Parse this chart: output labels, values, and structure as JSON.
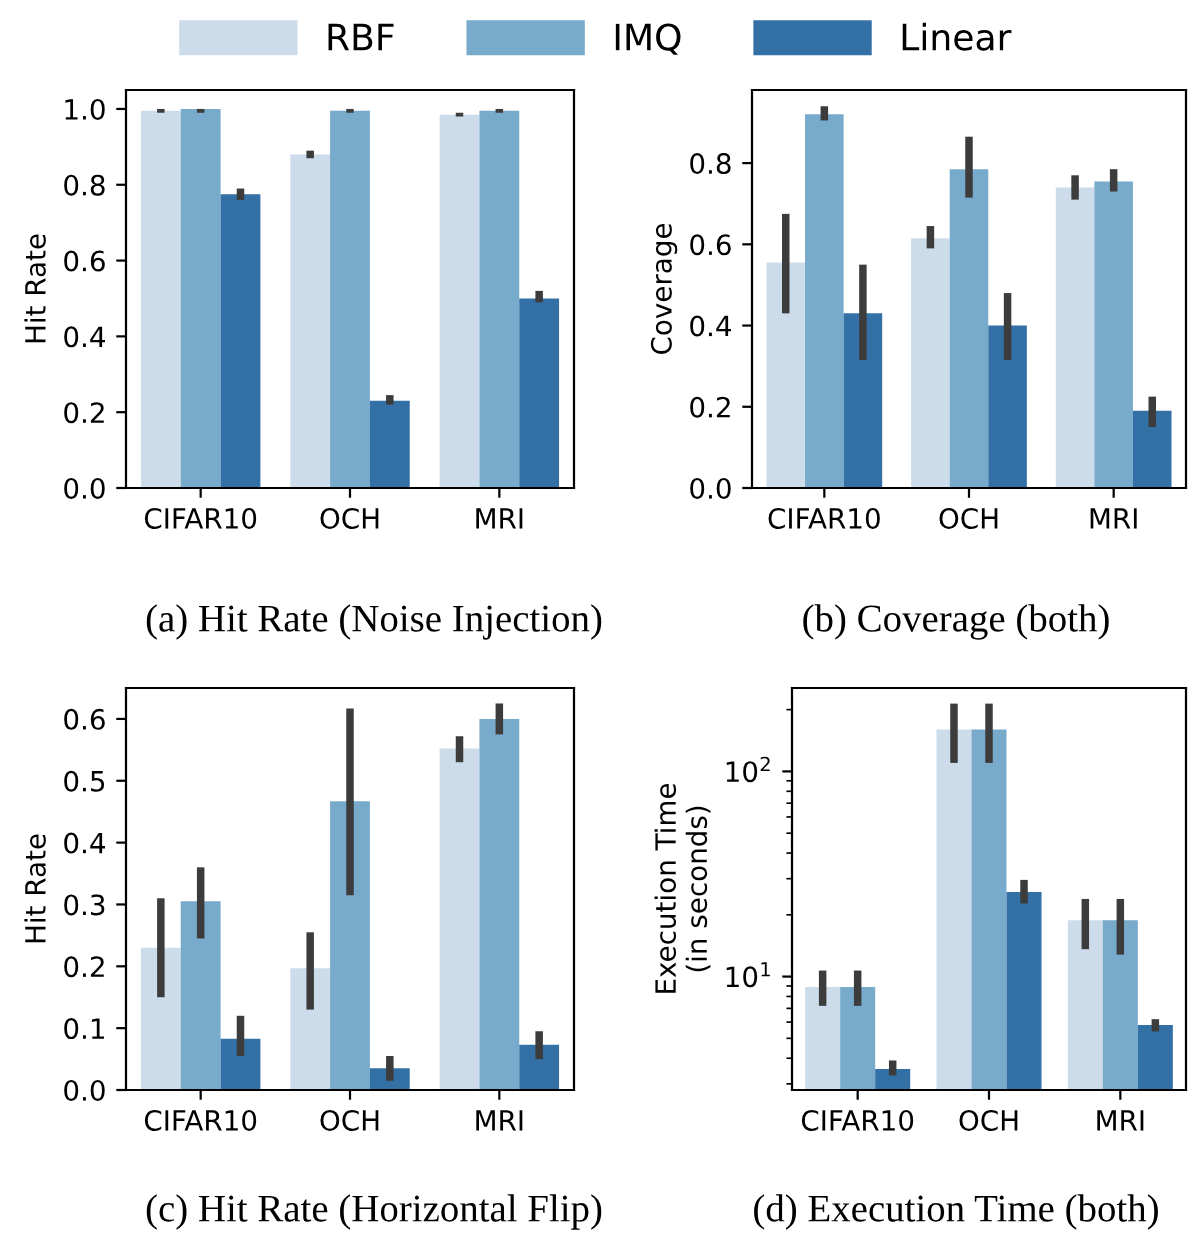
{
  "chart_data": [
    {
      "type": "bar",
      "title": "(a) Hit Rate (Noise Injection)",
      "ylabel": "Hit Rate",
      "categories": [
        "CIFAR10",
        "OCH",
        "MRI"
      ],
      "ylim": [
        0,
        1.05
      ],
      "yticks": [
        {
          "value": 0,
          "label": "0.0"
        },
        0.2,
        0.4,
        0.6,
        0.8,
        {
          "value": 1,
          "label": "1.0"
        }
      ],
      "legend": "top",
      "grid": false,
      "series": [
        {
          "name": "RBF",
          "color": "#ccdcea",
          "values": [
            0.995,
            0.88,
            0.985
          ],
          "errors": [
            [
              0.99,
              1.0
            ],
            [
              0.87,
              0.89
            ],
            [
              0.98,
              0.99
            ]
          ]
        },
        {
          "name": "IMQ",
          "color": "#77aacb",
          "values": [
            1.0,
            0.995,
            0.995
          ],
          "errors": [
            [
              0.99,
              1.0
            ],
            [
              0.99,
              1.0
            ],
            [
              0.99,
              1.0
            ]
          ]
        },
        {
          "name": "Linear",
          "color": "#3370a5",
          "values": [
            0.775,
            0.23,
            0.5
          ],
          "errors": [
            [
              0.76,
              0.79
            ],
            [
              0.22,
              0.245
            ],
            [
              0.49,
              0.52
            ]
          ]
        }
      ]
    },
    {
      "type": "bar",
      "title": "(b) Coverage (both)",
      "ylabel": "Coverage",
      "categories": [
        "CIFAR10",
        "OCH",
        "MRI"
      ],
      "ylim": [
        0,
        0.98
      ],
      "yticks": [
        {
          "value": 0,
          "label": "0.0"
        },
        0.2,
        0.4,
        0.6,
        0.8
      ],
      "grid": false,
      "series": [
        {
          "name": "RBF",
          "color": "#ccdcea",
          "values": [
            0.555,
            0.615,
            0.74
          ],
          "errors": [
            [
              0.43,
              0.675
            ],
            [
              0.59,
              0.645
            ],
            [
              0.71,
              0.77
            ]
          ]
        },
        {
          "name": "IMQ",
          "color": "#77aacb",
          "values": [
            0.92,
            0.785,
            0.755
          ],
          "errors": [
            [
              0.905,
              0.94
            ],
            [
              0.715,
              0.865
            ],
            [
              0.73,
              0.785
            ]
          ]
        },
        {
          "name": "Linear",
          "color": "#3370a5",
          "values": [
            0.43,
            0.4,
            0.19
          ],
          "errors": [
            [
              0.315,
              0.55
            ],
            [
              0.315,
              0.48
            ],
            [
              0.15,
              0.225
            ]
          ]
        }
      ]
    },
    {
      "type": "bar",
      "title": "(c) Hit Rate (Horizontal Flip)",
      "ylabel": "Hit Rate",
      "categories": [
        "CIFAR10",
        "OCH",
        "MRI"
      ],
      "ylim": [
        0,
        0.65
      ],
      "yticks": [
        {
          "value": 0,
          "label": "0.0"
        },
        0.1,
        0.2,
        0.3,
        0.4,
        0.5,
        0.6
      ],
      "grid": false,
      "series": [
        {
          "name": "RBF",
          "color": "#ccdcea",
          "values": [
            0.23,
            0.197,
            0.552
          ],
          "errors": [
            [
              0.15,
              0.31
            ],
            [
              0.13,
              0.255
            ],
            [
              0.53,
              0.572
            ]
          ]
        },
        {
          "name": "IMQ",
          "color": "#77aacb",
          "values": [
            0.305,
            0.467,
            0.6
          ],
          "errors": [
            [
              0.245,
              0.36
            ],
            [
              0.315,
              0.617
            ],
            [
              0.575,
              0.625
            ]
          ]
        },
        {
          "name": "Linear",
          "color": "#3370a5",
          "values": [
            0.083,
            0.035,
            0.073
          ],
          "errors": [
            [
              0.055,
              0.12
            ],
            [
              0.015,
              0.055
            ],
            [
              0.05,
              0.095
            ]
          ]
        }
      ]
    },
    {
      "type": "bar",
      "title": "(d) Execution Time (both)",
      "ylabel": "Execution Time\n(in seconds)",
      "categories": [
        "CIFAR10",
        "OCH",
        "MRI"
      ],
      "log": true,
      "ylim": [
        2.8,
        255
      ],
      "yticks": [
        {
          "value": 10,
          "label": "10$^{1}$"
        },
        {
          "value": 100,
          "label": "10$^{2}$"
        }
      ],
      "grid": false,
      "series": [
        {
          "name": "RBF",
          "color": "#ccdcea",
          "values": [
            8.9,
            160,
            18.8
          ],
          "errors": [
            [
              7.2,
              10.7
            ],
            [
              110,
              214
            ],
            [
              13.6,
              23.9
            ]
          ]
        },
        {
          "name": "IMQ",
          "color": "#77aacb",
          "values": [
            8.9,
            160,
            18.8
          ],
          "errors": [
            [
              7.2,
              10.7
            ],
            [
              110,
              214
            ],
            [
              12.8,
              23.9
            ]
          ]
        },
        {
          "name": "Linear",
          "color": "#3370a5",
          "values": [
            3.54,
            25.8,
            5.8
          ],
          "errors": [
            [
              3.3,
              3.9
            ],
            [
              22.7,
              29.6
            ],
            [
              5.4,
              6.2
            ]
          ]
        }
      ]
    }
  ]
}
